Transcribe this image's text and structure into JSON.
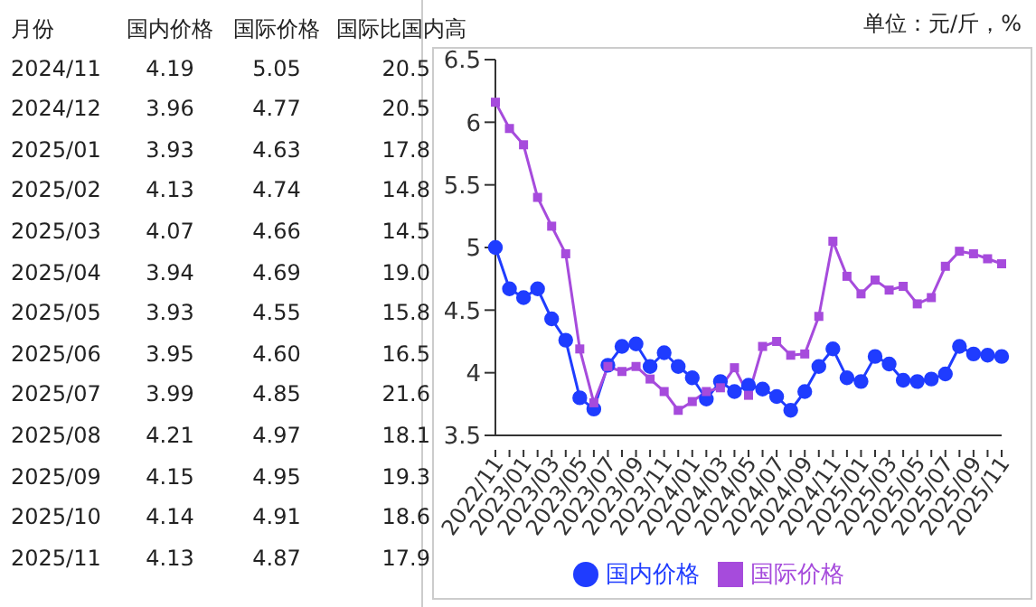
{
  "chart_data": [
    {
      "type": "other",
      "xlabel": "月份",
      "categories": [
        "2024/11",
        "2024/12",
        "2025/01",
        "2025/02",
        "2025/03",
        "2025/04",
        "2025/05",
        "2025/06",
        "2025/07",
        "2025/08",
        "2025/09",
        "2025/10",
        "2025/11"
      ],
      "series": [
        {
          "name": "国内价格",
          "values": [
            4.19,
            3.96,
            3.93,
            4.13,
            4.07,
            3.94,
            3.93,
            3.95,
            3.99,
            4.21,
            4.15,
            4.14,
            4.13
          ],
          "value_labels": [
            "4.19",
            "3.96",
            "3.93",
            "4.13",
            "4.07",
            "3.94",
            "3.93",
            "3.95",
            "3.99",
            "4.21",
            "4.15",
            "4.14",
            "4.13"
          ]
        },
        {
          "name": "国际价格",
          "values": [
            5.05,
            4.77,
            4.63,
            4.74,
            4.66,
            4.69,
            4.55,
            4.6,
            4.85,
            4.97,
            4.95,
            4.91,
            4.87
          ],
          "value_labels": [
            "5.05",
            "4.77",
            "4.63",
            "4.74",
            "4.66",
            "4.69",
            "4.55",
            "4.60",
            "4.85",
            "4.97",
            "4.95",
            "4.91",
            "4.87"
          ]
        },
        {
          "name": "国际比国内高",
          "values": [
            20.5,
            20.5,
            17.8,
            14.8,
            14.5,
            19.0,
            15.8,
            16.5,
            21.6,
            18.1,
            19.3,
            18.6,
            17.9
          ],
          "value_labels": [
            "20.5",
            "20.5",
            "17.8",
            "14.8",
            "14.5",
            "19.0",
            "15.8",
            "16.5",
            "21.6",
            "18.1",
            "19.3",
            "18.6",
            "17.9"
          ]
        }
      ]
    },
    {
      "type": "line",
      "annotations": [
        "单位：元/斤，%"
      ],
      "categories": [
        "2022/11",
        null,
        "2023/01",
        null,
        "2023/03",
        null,
        "2023/05",
        null,
        "2023/07",
        null,
        "2023/09",
        null,
        "2023/11",
        null,
        "2024/01",
        null,
        "2024/03",
        null,
        "2024/05",
        null,
        "2024/07",
        null,
        "2024/09",
        null,
        "2024/11",
        null,
        "2025/01",
        null,
        "2025/03",
        null,
        "2025/05",
        null,
        "2025/07",
        null,
        "2025/09",
        null,
        "2025/11"
      ],
      "ylim": [
        3.5,
        6.5
      ],
      "yticks": [
        3.5,
        4,
        4.5,
        5,
        5.5,
        6,
        6.5
      ],
      "legend": "bottom",
      "series": [
        {
          "name": "国内价格",
          "color": "#1f3cff",
          "marker": "circle",
          "values": [
            5.0,
            4.67,
            4.6,
            4.67,
            4.43,
            4.26,
            3.8,
            3.71,
            4.06,
            4.21,
            4.23,
            4.05,
            4.16,
            4.05,
            3.96,
            3.79,
            3.93,
            3.85,
            3.9,
            3.87,
            3.81,
            3.7,
            3.85,
            4.05,
            4.19,
            3.96,
            3.93,
            4.13,
            4.07,
            3.94,
            3.93,
            3.95,
            3.99,
            4.21,
            4.15,
            4.14,
            4.13
          ]
        },
        {
          "name": "国际价格",
          "color": "#a64bdc",
          "marker": "square",
          "values": [
            6.16,
            5.95,
            5.82,
            5.4,
            5.17,
            4.95,
            4.19,
            3.76,
            4.05,
            4.01,
            4.05,
            3.95,
            3.85,
            3.7,
            3.77,
            3.85,
            3.88,
            4.04,
            3.82,
            4.21,
            4.25,
            4.14,
            4.15,
            4.45,
            5.05,
            4.77,
            4.63,
            4.74,
            4.66,
            4.69,
            4.55,
            4.6,
            4.85,
            4.97,
            4.95,
            4.91,
            4.87
          ]
        }
      ]
    }
  ]
}
